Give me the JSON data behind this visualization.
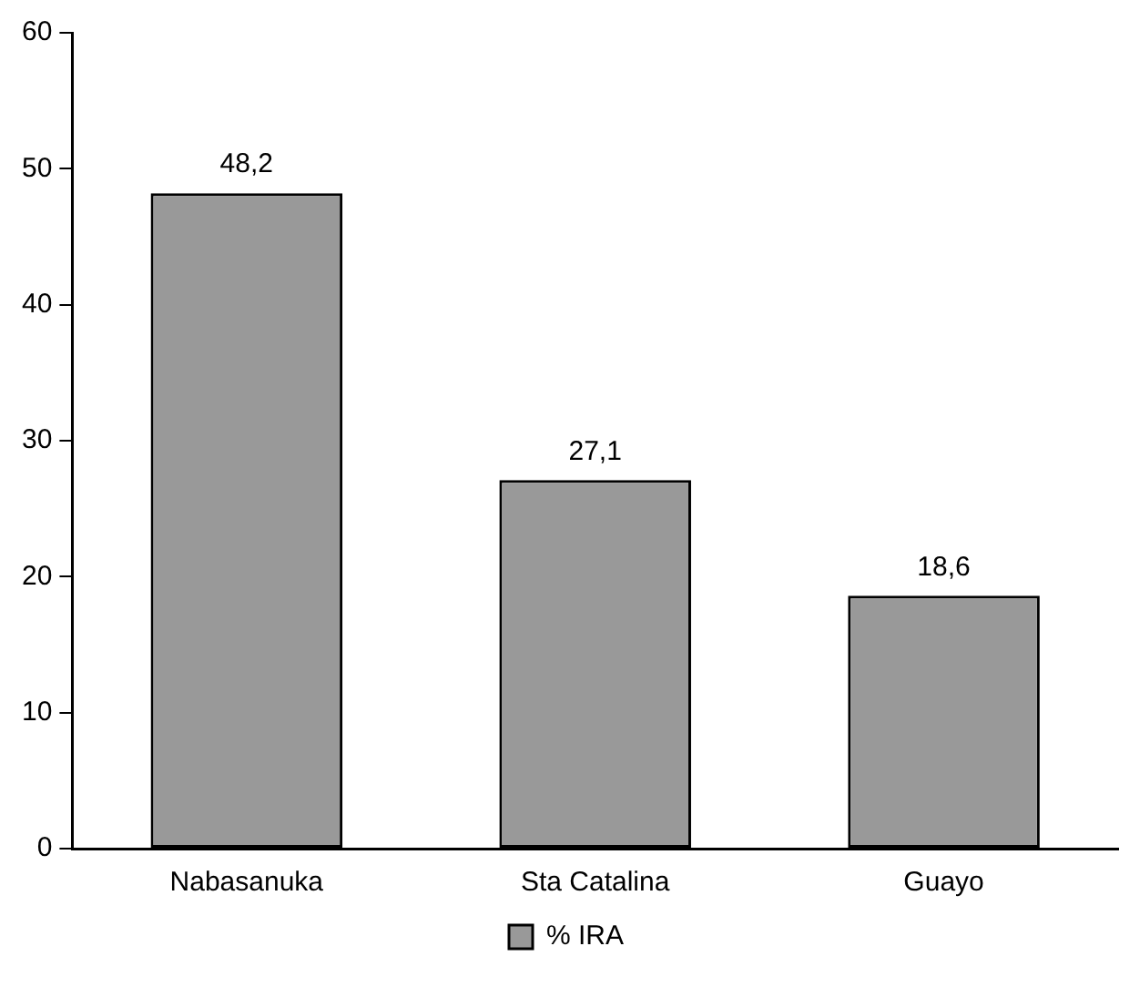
{
  "chart_data": {
    "type": "bar",
    "categories": [
      "Nabasanuka",
      "Sta Catalina",
      "Guayo"
    ],
    "series": [
      {
        "name": "% IRA",
        "color": "#999999",
        "values": [
          48.2,
          27.1,
          18.6
        ],
        "value_labels": [
          "48,2",
          "27,1",
          "18,6"
        ]
      }
    ],
    "ylim": [
      0,
      60
    ],
    "yticks": [
      0,
      10,
      20,
      30,
      40,
      50,
      60
    ],
    "grid": false,
    "legend": "bottom"
  }
}
